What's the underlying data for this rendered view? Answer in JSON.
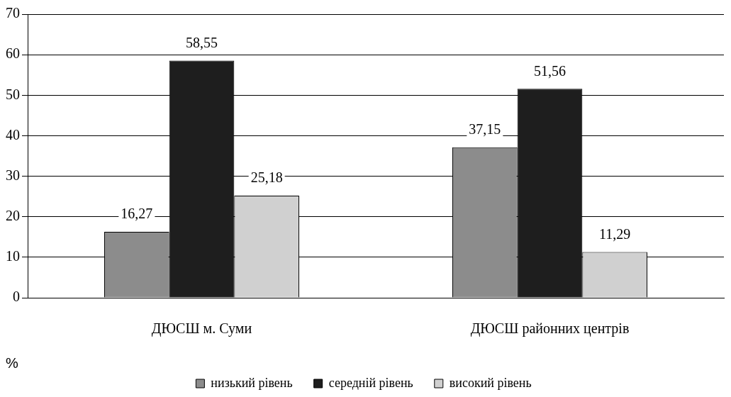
{
  "chart_data": {
    "type": "bar",
    "categories": [
      "ДЮСШ м. Суми",
      "ДЮСШ районних центрів"
    ],
    "ylabel": "%",
    "series": [
      {
        "name": "низький рівень",
        "color": "#8c8c8c",
        "values": [
          16.27,
          37.15
        ],
        "value_labels": [
          "16,27",
          "37,15"
        ]
      },
      {
        "name": "середній рівень",
        "color": "#1e1e1e",
        "values": [
          58.55,
          51.56
        ],
        "value_labels": [
          "58,55",
          "51,56"
        ]
      },
      {
        "name": "високий рівень",
        "color": "#d0d0d0",
        "values": [
          25.18,
          11.29
        ],
        "value_labels": [
          "25,18",
          "11,29"
        ]
      }
    ],
    "ylim": [
      0,
      70
    ],
    "yticks": [
      0,
      10,
      20,
      30,
      40,
      50,
      60,
      70
    ],
    "grid": "y",
    "legend": "bottom"
  }
}
